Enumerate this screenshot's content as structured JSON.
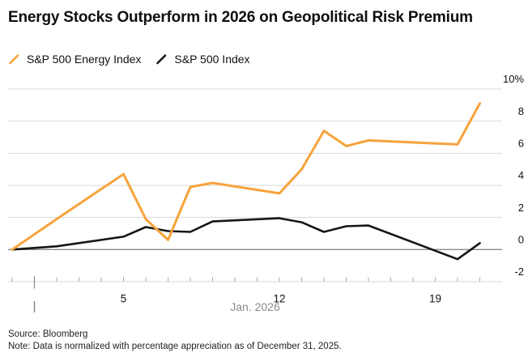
{
  "title": "Energy Stocks Outperform in 2026 on Geopolitical Risk Premium",
  "legend": [
    {
      "label": "S&P 500 Energy Index",
      "color": "#F6A33B"
    },
    {
      "label": "S&P 500 Index",
      "color": "#161616"
    }
  ],
  "footer": {
    "source": "Source: Bloomberg",
    "note": "Note: Data is normalized with percentage appreciation as of December 31, 2025."
  },
  "chart_data": {
    "type": "line",
    "title": "Energy Stocks Outperform in 2026 on Geopolitical Risk Premium",
    "xlabel": "Jan. 2026",
    "ylabel": "",
    "x_unit": "calendar day of January 2026 (0 = Dec 31, 2025 baseline)",
    "ylim": [
      -2,
      10
    ],
    "grid": "horizontal",
    "legend_position": "top-left",
    "y_ticks": [
      {
        "v": 10,
        "label": "10%"
      },
      {
        "v": 8,
        "label": "8"
      },
      {
        "v": 6,
        "label": "6"
      },
      {
        "v": 4,
        "label": "4"
      },
      {
        "v": 2,
        "label": "2"
      },
      {
        "v": 0,
        "label": "0"
      },
      {
        "v": -2,
        "label": "-2"
      }
    ],
    "x_tick_days": [
      0,
      1,
      2,
      3,
      4,
      5,
      6,
      7,
      8,
      9,
      10,
      11,
      12,
      13,
      14,
      15,
      16,
      17,
      18,
      19,
      20,
      21
    ],
    "x_labeled_ticks": [
      {
        "day": 5,
        "label": "5"
      },
      {
        "day": 12,
        "label": "12"
      },
      {
        "day": 19,
        "label": "19"
      }
    ],
    "month_start_day": 1,
    "series": [
      {
        "name": "S&P 500 Index",
        "color": "#161616",
        "x": [
          0,
          2,
          5,
          6,
          7,
          8,
          9,
          12,
          13,
          14,
          15,
          16,
          20,
          21
        ],
        "y": [
          0,
          0.2,
          0.8,
          1.4,
          1.15,
          1.1,
          1.75,
          1.95,
          1.7,
          1.1,
          1.45,
          1.5,
          -0.6,
          0.4
        ]
      },
      {
        "name": "S&P 500 Energy Index",
        "color": "#F6A33B",
        "x": [
          0,
          2,
          5,
          6,
          7,
          8,
          9,
          12,
          13,
          14,
          15,
          16,
          20,
          21
        ],
        "y": [
          0,
          1.9,
          4.7,
          1.9,
          0.6,
          3.9,
          4.15,
          3.5,
          5.0,
          7.4,
          6.45,
          6.8,
          6.55,
          9.1
        ]
      }
    ]
  }
}
